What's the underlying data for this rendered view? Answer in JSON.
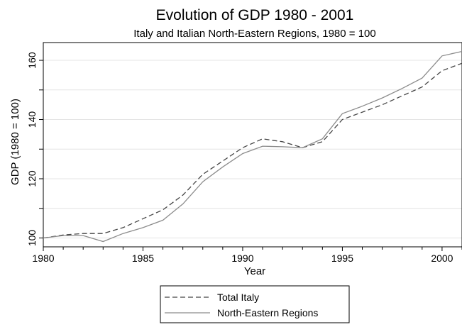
{
  "chart_data": {
    "type": "line",
    "title": "Evolution of GDP 1980 - 2001",
    "subtitle": "Italy and Italian North-Eastern Regions, 1980 = 100",
    "xlabel": "Year",
    "ylabel": "GDP (1980 = 100)",
    "xlim": [
      1980,
      2001
    ],
    "ylim": [
      97,
      166
    ],
    "xticks": [
      1980,
      1985,
      1990,
      1995,
      2000
    ],
    "yticks": [
      100,
      120,
      140,
      160
    ],
    "grid": "horizontal",
    "legend_position": "bottom-center",
    "x": [
      1980,
      1981,
      1982,
      1983,
      1984,
      1985,
      1986,
      1987,
      1988,
      1989,
      1990,
      1991,
      1992,
      1993,
      1994,
      1995,
      1996,
      1997,
      1998,
      1999,
      2000,
      2001
    ],
    "series": [
      {
        "name": "Total Italy",
        "style": "dashed",
        "color": "#444444",
        "values": [
          100,
          101,
          101.5,
          101.5,
          103.5,
          106.5,
          109.5,
          114.5,
          121.5,
          126,
          130.5,
          133.5,
          132.5,
          130.5,
          132.5,
          140,
          142.5,
          145,
          148,
          151,
          156.5,
          159
        ]
      },
      {
        "name": "North-Eastern Regions",
        "style": "solid",
        "color": "#8c8c8c",
        "values": [
          100,
          100.8,
          100.8,
          98.8,
          101.5,
          103.5,
          106,
          111.5,
          119,
          124,
          128.5,
          131,
          130.8,
          130.5,
          133.5,
          142,
          144.5,
          147.3,
          150.5,
          154,
          161.5,
          163
        ]
      }
    ]
  }
}
